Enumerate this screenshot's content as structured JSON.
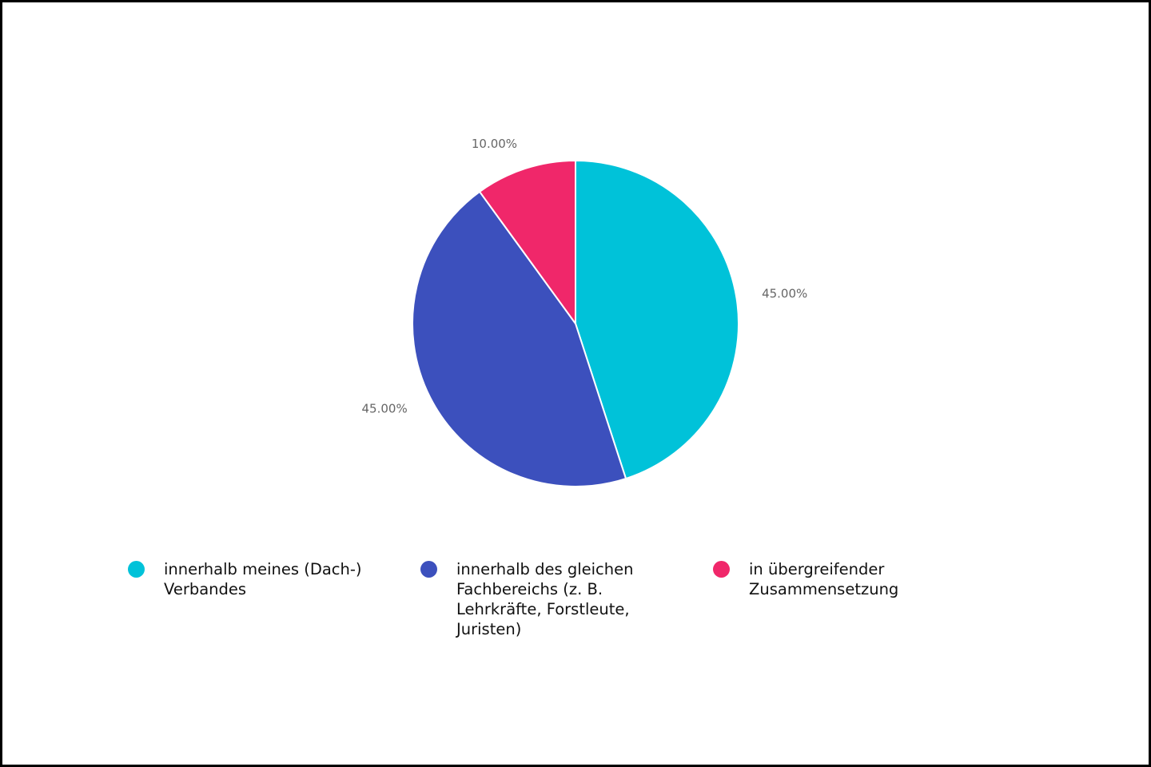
{
  "chart_data": {
    "type": "pie",
    "categories": [
      "innerhalb meines (Dach-) Verbandes",
      "innerhalb des gleichen Fachbereichs (z. B. Lehrkräfte, Forstleute, Juristen)",
      "in übergreifender Zusammensetzung"
    ],
    "values": [
      45,
      45,
      10
    ],
    "data_labels": [
      "45.00%",
      "45.00%",
      "10.00%"
    ],
    "colors": [
      "#00c2d9",
      "#3c50bd",
      "#f0276a"
    ],
    "start_angle": "12 o'clock",
    "direction": "clockwise",
    "legend_position": "bottom"
  },
  "legend": {
    "items": [
      {
        "label": "innerhalb meines (Dach-) Verbandes",
        "color": "#00c2d9"
      },
      {
        "label": "innerhalb des gleichen Fachbereichs (z. B. Lehrkräfte, Forstleute, Juristen)",
        "color": "#3c50bd"
      },
      {
        "label": "in übergreifender Zusammensetzung",
        "color": "#f0276a"
      }
    ]
  }
}
